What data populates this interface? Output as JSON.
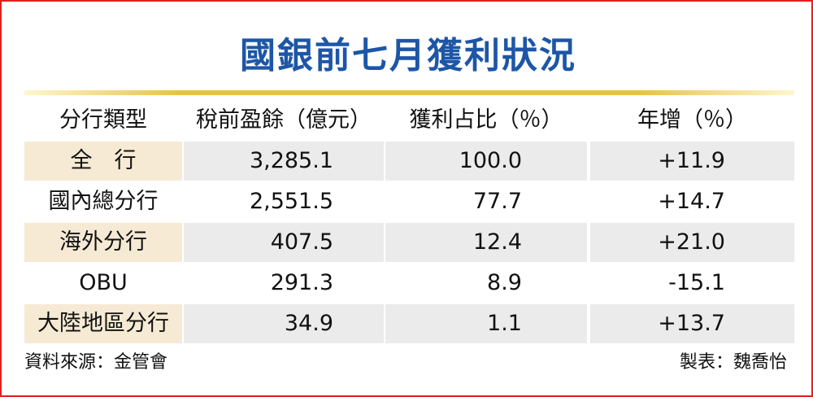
{
  "title": "國銀前七月獲利狀況",
  "table": {
    "header": [
      "分行類型",
      "稅前盈餘（億元）",
      "獲利占比（％）",
      "年增（％）"
    ],
    "rows": [
      [
        "全　行",
        "3,285.1",
        "100.0",
        "+11.9"
      ],
      [
        "國內總分行",
        "2,551.5",
        "77.7",
        "+14.7"
      ],
      [
        "海外分行",
        "407.5",
        "12.4",
        "+21.0"
      ],
      [
        "OBU",
        "291.3",
        "8.9",
        "-15.1"
      ],
      [
        "大陸地區分行",
        "34.9",
        "1.1",
        "+13.7"
      ]
    ]
  },
  "footer": {
    "source": "資料來源：金管會",
    "credit": "製表：魏喬怡"
  }
}
